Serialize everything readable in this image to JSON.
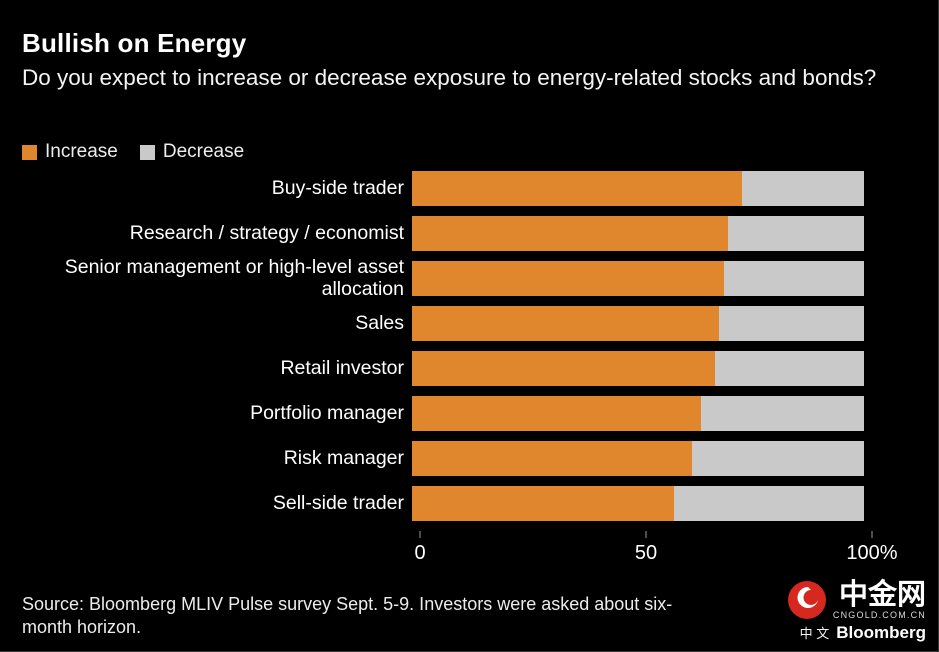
{
  "title": "Bullish on Energy",
  "subtitle": "Do you expect to increase or decrease exposure to energy-related stocks and bonds?",
  "legend": [
    {
      "label": "Increase",
      "color": "#E0862D"
    },
    {
      "label": "Decrease",
      "color": "#C9C9C9"
    }
  ],
  "chart_data": {
    "type": "bar",
    "orientation": "horizontal",
    "stacked": true,
    "categories": [
      "Buy-side trader",
      "Research / strategy / economist",
      "Senior management or high-level asset allocation",
      "Sales",
      "Retail investor",
      "Portfolio manager",
      "Risk manager",
      "Sell-side trader"
    ],
    "series": [
      {
        "name": "Increase",
        "color": "#E0862D",
        "values": [
          73,
          70,
          69,
          68,
          67,
          64,
          62,
          58
        ]
      },
      {
        "name": "Decrease",
        "color": "#C9C9C9",
        "values": [
          27,
          30,
          31,
          32,
          33,
          36,
          38,
          42
        ]
      }
    ],
    "xlim": [
      0,
      100
    ],
    "xticks": [
      "0",
      "50",
      "100%"
    ],
    "xtick_positions": [
      0,
      50,
      100
    ],
    "grid": false,
    "legend_position": "top-left"
  },
  "source": "Source: Bloomberg MLIV Pulse survey Sept. 5-9. Investors were asked about six-month horizon.",
  "logo": {
    "brand": "中金网",
    "domain": "CNGOLD.COM.CN",
    "prefix": "中 文",
    "bloomberg": "Bloomberg",
    "mark_color": "#D6281E"
  }
}
